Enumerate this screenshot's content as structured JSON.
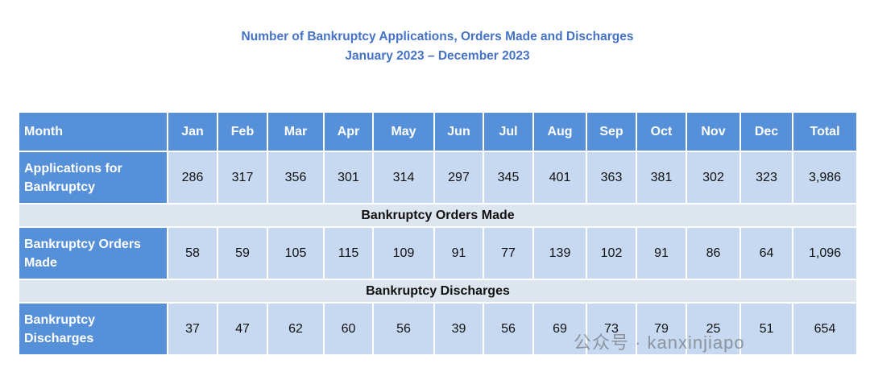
{
  "title": {
    "line1": "Number of Bankruptcy Applications, Orders Made and Discharges",
    "line2": "January 2023 – December 2023"
  },
  "table": {
    "header": [
      "Month",
      "Jan",
      "Feb",
      "Mar",
      "Apr",
      "May",
      "Jun",
      "Jul",
      "Aug",
      "Sep",
      "Oct",
      "Nov",
      "Dec",
      "Total"
    ],
    "body": [
      {
        "cells": [
          "Applications for Bankruptcy",
          "286",
          "317",
          "356",
          "301",
          "314",
          "297",
          "345",
          "401",
          "363",
          "381",
          "302",
          "323",
          "3,986"
        ]
      },
      {
        "section": "Bankruptcy Orders Made"
      },
      {
        "cells": [
          "Bankruptcy Orders Made",
          "58",
          "59",
          "105",
          "115",
          "109",
          "91",
          "77",
          "139",
          "102",
          "91",
          "86",
          "64",
          "1,096"
        ]
      },
      {
        "section": "Bankruptcy Discharges"
      },
      {
        "cells": [
          "Bankruptcy Discharges",
          "37",
          "47",
          "62",
          "60",
          "56",
          "39",
          "56",
          "69",
          "73",
          "79",
          "25",
          "51",
          "654"
        ]
      }
    ]
  },
  "watermark": "公众号 · kanxinjiapo"
}
